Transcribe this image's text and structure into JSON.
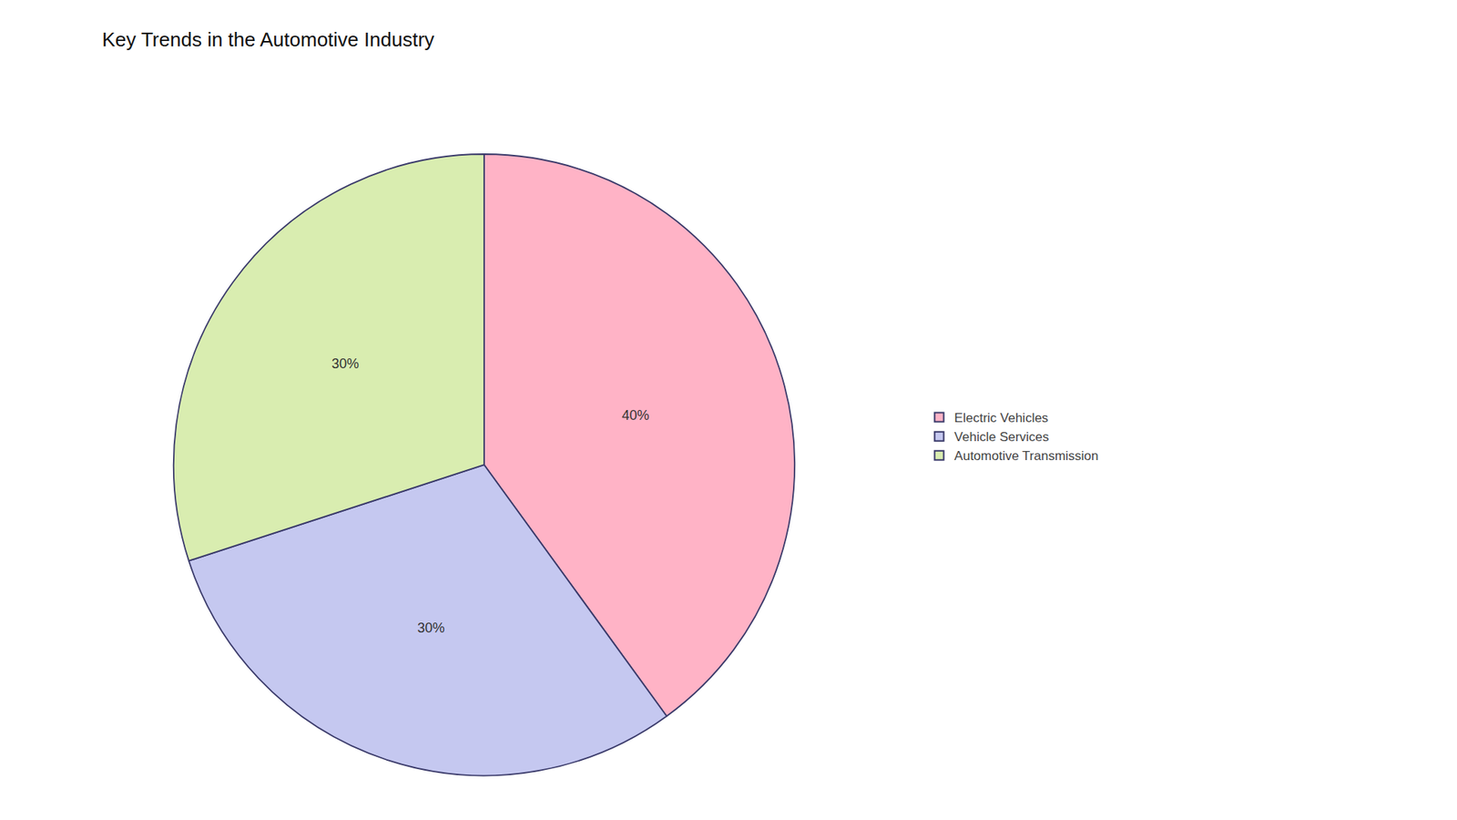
{
  "chart_data": {
    "type": "pie",
    "title": "Key Trends in the Automotive Industry",
    "categories": [
      "Electric Vehicles",
      "Vehicle Services",
      "Automotive Transmission"
    ],
    "values": [
      40,
      30,
      30
    ],
    "value_labels": [
      "40%",
      "30%",
      "30%"
    ],
    "colors": [
      "#FFB3C6",
      "#C5C8F0",
      "#D9EDB0"
    ],
    "data_labels": true,
    "legend": "right"
  }
}
